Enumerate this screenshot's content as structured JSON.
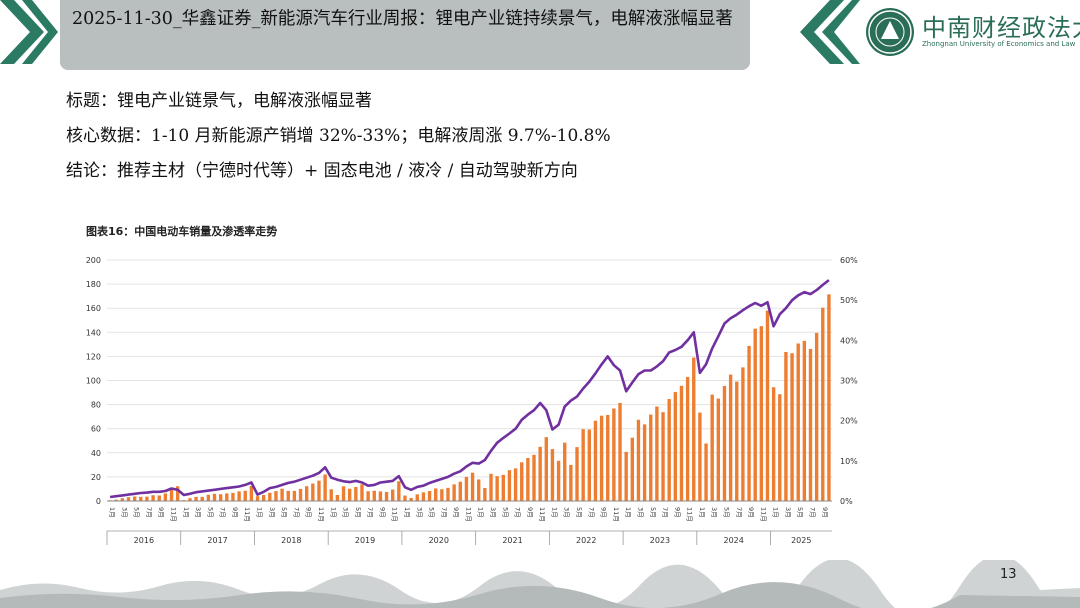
{
  "slide": {
    "title": "2025-11-30_华鑫证券_新能源汽车行业周报：锂电产业链持续景气，电解液涨幅显著",
    "bullets": [
      "标题：锂电产业链景气，电解液涨幅显著",
      "核心数据：1-10 月新能源产销增 32%-33%；电解液周涨 9.7%-10.8%",
      "结论：推荐主材（宁德时代等）+ 固态电池 / 液冷 / 自动驾驶新方向"
    ],
    "page_number": "13",
    "logo": {
      "name_cn": "中南财经政法大学",
      "name_en": "Zhongnan University of Economics and Law"
    },
    "colors": {
      "title_box": "#b9bebe",
      "chevron": "#2b7a63",
      "logo": "#2b6e58",
      "bar": "#ed7d31",
      "line": "#7030a0"
    }
  },
  "chart_data": {
    "type": "bar",
    "title": "图表16：中国电动车销量及渗透率走势",
    "years": [
      "2016",
      "2017",
      "2018",
      "2019",
      "2020",
      "2021",
      "2022",
      "2023",
      "2024",
      "2025"
    ],
    "month_ticks": [
      "1月",
      "3月",
      "5月",
      "7月",
      "9月",
      "11月"
    ],
    "y_left": {
      "min": 0,
      "max": 200,
      "ticks": [
        "0",
        "20",
        "40",
        "60",
        "80",
        "100",
        "120",
        "140",
        "160",
        "180",
        "200"
      ]
    },
    "y_right": {
      "min": 0,
      "max": 60,
      "ticks": [
        "0%",
        "10%",
        "20%",
        "30%",
        "40%",
        "50%",
        "60%"
      ]
    },
    "series": [
      {
        "kind": "bar",
        "axis": "left",
        "values": [
          0.6,
          1.1,
          2.3,
          3.2,
          3.7,
          3.5,
          3.6,
          4.8,
          4.6,
          6.2,
          9.9,
          12.3,
          0.7,
          2.3,
          3.4,
          3.4,
          5.2,
          6.0,
          5.6,
          6.3,
          6.7,
          8.0,
          8.5,
          12.5,
          4.0,
          5.0,
          6.8,
          8.2,
          10.2,
          8.4,
          8.4,
          10.0,
          12.3,
          14.5,
          16.9,
          22.0,
          9.7,
          5.0,
          12.2,
          10.2,
          11.6,
          13.8,
          8.1,
          8.5,
          8.0,
          7.5,
          9.5,
          16.3,
          4.5,
          2.5,
          5.5,
          7.2,
          8.3,
          10.4,
          9.8,
          10.9,
          13.8,
          16.0,
          20.0,
          23.5,
          17.9,
          10.8,
          22.6,
          20.6,
          21.7,
          25.6,
          27.1,
          32.1,
          35.7,
          38.3,
          45.0,
          53.0,
          43.1,
          33.4,
          48.4,
          29.9,
          44.7,
          59.6,
          59.3,
          66.6,
          70.8,
          71.4,
          76.8,
          81.4,
          40.8,
          52.5,
          67.4,
          63.6,
          71.7,
          78.4,
          73.7,
          84.6,
          90.4,
          95.6,
          102.9,
          119.1,
          73.4,
          47.7,
          88.3,
          85.0,
          95.5,
          104.9,
          99.1,
          110.9,
          128.7,
          143.0,
          145.1,
          158.0,
          94.4,
          88.6,
          123.7,
          122.6,
          130.7,
          132.9,
          126.2,
          139.5,
          160.4,
          171.5
        ]
      },
      {
        "kind": "line",
        "axis": "right",
        "values": [
          1.0,
          1.2,
          1.4,
          1.6,
          1.8,
          2.0,
          2.1,
          2.3,
          2.3,
          2.5,
          3.1,
          2.8,
          1.5,
          1.8,
          2.2,
          2.4,
          2.6,
          2.8,
          3.0,
          3.2,
          3.4,
          3.6,
          4.0,
          4.6,
          1.6,
          2.3,
          3.2,
          3.5,
          4.0,
          4.5,
          4.8,
          5.3,
          5.8,
          6.3,
          7.0,
          8.4,
          5.8,
          5.3,
          4.9,
          4.7,
          5.0,
          4.6,
          3.8,
          4.0,
          4.6,
          4.8,
          5.0,
          6.2,
          3.4,
          2.8,
          3.5,
          3.8,
          4.5,
          5.0,
          5.5,
          6.0,
          6.8,
          7.4,
          8.6,
          9.5,
          9.3,
          10.2,
          12.5,
          14.5,
          15.7,
          16.8,
          18.0,
          20.2,
          21.5,
          22.6,
          24.4,
          22.6,
          17.8,
          19.0,
          23.5,
          25.0,
          26.0,
          28.0,
          29.7,
          31.8,
          34.0,
          36.0,
          33.8,
          32.5,
          27.3,
          29.5,
          31.6,
          32.5,
          32.5,
          33.5,
          34.8,
          37.0,
          37.6,
          38.4,
          40.0,
          42.0,
          31.9,
          34.0,
          38.0,
          41.0,
          44.2,
          45.5,
          46.4,
          47.5,
          48.5,
          49.3,
          48.6,
          49.5,
          43.5,
          46.5,
          48.0,
          50.0,
          51.2,
          52.0,
          51.5,
          52.5,
          53.8,
          55.0
        ]
      }
    ],
    "grid": true
  }
}
